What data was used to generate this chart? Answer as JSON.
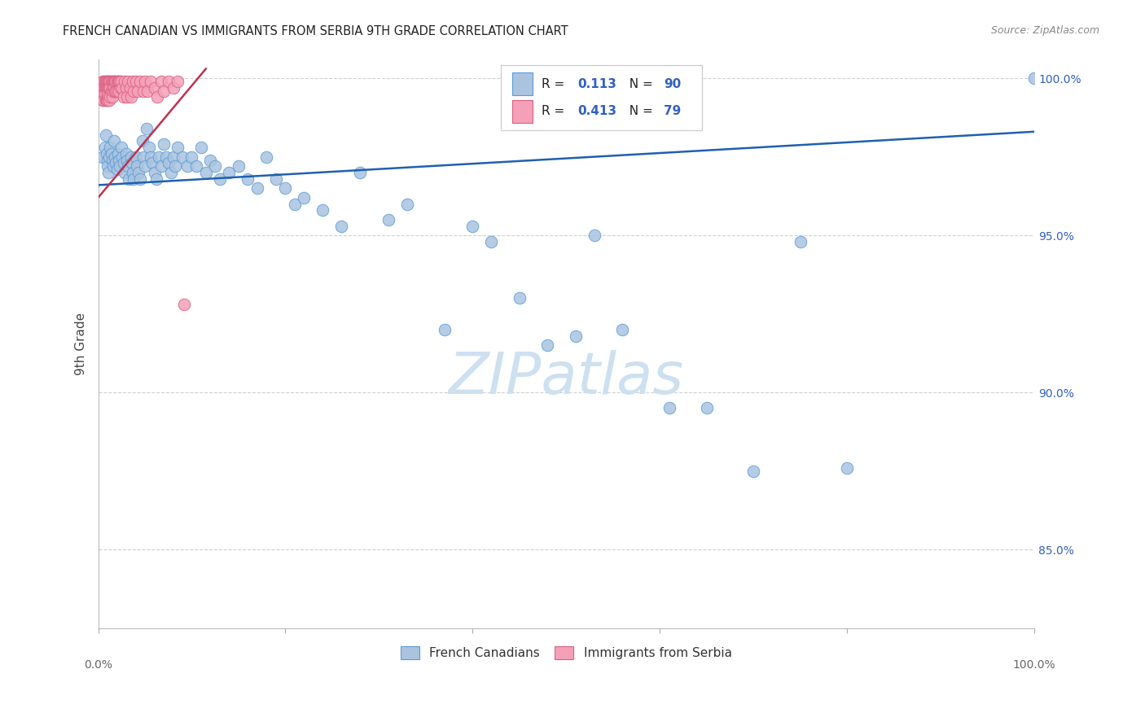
{
  "title": "FRENCH CANADIAN VS IMMIGRANTS FROM SERBIA 9TH GRADE CORRELATION CHART",
  "source": "Source: ZipAtlas.com",
  "ylabel": "9th Grade",
  "legend_blue_label": "French Canadians",
  "legend_pink_label": "Immigrants from Serbia",
  "blue_R_val": "0.113",
  "blue_N_val": "90",
  "pink_R_val": "0.413",
  "pink_N_val": "79",
  "blue_color": "#aac4e0",
  "blue_edge": "#5b9bd5",
  "pink_color": "#f4a0b8",
  "pink_edge": "#d96080",
  "blue_line_color": "#2060b0",
  "pink_line_color": "#c03050",
  "watermark_color": "#cde0f0",
  "right_axis_color": "#3060c0",
  "grid_color": "#d0d0d0",
  "title_color": "#222222",
  "source_color": "#888888",
  "ylim_low": 0.825,
  "ylim_high": 1.006,
  "xlim_low": 0.0,
  "xlim_high": 1.0,
  "blue_line_x0": 0.0,
  "blue_line_x1": 1.0,
  "blue_line_y0": 0.966,
  "blue_line_y1": 0.983,
  "pink_line_x0": 0.0,
  "pink_line_x1": 0.115,
  "pink_line_y0": 0.962,
  "pink_line_y1": 1.003,
  "blue_x": [
    0.005,
    0.007,
    0.008,
    0.009,
    0.01,
    0.01,
    0.011,
    0.012,
    0.013,
    0.014,
    0.015,
    0.016,
    0.017,
    0.018,
    0.019,
    0.02,
    0.021,
    0.022,
    0.023,
    0.025,
    0.026,
    0.027,
    0.028,
    0.03,
    0.031,
    0.032,
    0.033,
    0.035,
    0.036,
    0.037,
    0.038,
    0.04,
    0.041,
    0.043,
    0.045,
    0.047,
    0.048,
    0.05,
    0.052,
    0.054,
    0.056,
    0.058,
    0.06,
    0.062,
    0.065,
    0.067,
    0.07,
    0.073,
    0.075,
    0.078,
    0.08,
    0.082,
    0.085,
    0.09,
    0.095,
    0.1,
    0.105,
    0.11,
    0.115,
    0.12,
    0.125,
    0.13,
    0.14,
    0.15,
    0.16,
    0.17,
    0.18,
    0.19,
    0.2,
    0.21,
    0.22,
    0.24,
    0.26,
    0.28,
    0.31,
    0.33,
    0.37,
    0.4,
    0.42,
    0.45,
    0.48,
    0.51,
    0.53,
    0.56,
    0.61,
    0.65,
    0.7,
    0.75,
    0.8,
    1.0
  ],
  "blue_y": [
    0.975,
    0.978,
    0.982,
    0.976,
    0.974,
    0.972,
    0.97,
    0.975,
    0.978,
    0.976,
    0.974,
    0.972,
    0.98,
    0.975,
    0.973,
    0.971,
    0.976,
    0.974,
    0.972,
    0.978,
    0.975,
    0.973,
    0.97,
    0.976,
    0.974,
    0.972,
    0.968,
    0.975,
    0.973,
    0.97,
    0.968,
    0.975,
    0.972,
    0.97,
    0.968,
    0.98,
    0.975,
    0.972,
    0.984,
    0.978,
    0.975,
    0.973,
    0.97,
    0.968,
    0.975,
    0.972,
    0.979,
    0.975,
    0.973,
    0.97,
    0.975,
    0.972,
    0.978,
    0.975,
    0.972,
    0.975,
    0.972,
    0.978,
    0.97,
    0.974,
    0.972,
    0.968,
    0.97,
    0.972,
    0.968,
    0.965,
    0.975,
    0.968,
    0.965,
    0.96,
    0.962,
    0.958,
    0.953,
    0.97,
    0.955,
    0.96,
    0.92,
    0.953,
    0.948,
    0.93,
    0.915,
    0.918,
    0.95,
    0.92,
    0.895,
    0.895,
    0.875,
    0.948,
    0.876,
    1.0
  ],
  "pink_x": [
    0.003,
    0.004,
    0.004,
    0.005,
    0.005,
    0.005,
    0.005,
    0.006,
    0.006,
    0.006,
    0.006,
    0.007,
    0.007,
    0.007,
    0.008,
    0.008,
    0.008,
    0.009,
    0.009,
    0.009,
    0.01,
    0.01,
    0.01,
    0.01,
    0.011,
    0.011,
    0.011,
    0.012,
    0.012,
    0.012,
    0.013,
    0.013,
    0.013,
    0.014,
    0.014,
    0.015,
    0.015,
    0.015,
    0.016,
    0.016,
    0.017,
    0.017,
    0.018,
    0.018,
    0.019,
    0.019,
    0.02,
    0.02,
    0.021,
    0.022,
    0.022,
    0.023,
    0.024,
    0.025,
    0.026,
    0.027,
    0.028,
    0.03,
    0.031,
    0.032,
    0.034,
    0.035,
    0.037,
    0.038,
    0.04,
    0.042,
    0.045,
    0.048,
    0.05,
    0.053,
    0.056,
    0.06,
    0.063,
    0.067,
    0.07,
    0.075,
    0.08,
    0.085,
    0.092
  ],
  "pink_y": [
    0.997,
    0.998,
    0.995,
    0.999,
    0.997,
    0.995,
    0.993,
    0.999,
    0.997,
    0.995,
    0.993,
    0.999,
    0.997,
    0.995,
    0.999,
    0.997,
    0.993,
    0.999,
    0.997,
    0.993,
    0.999,
    0.997,
    0.995,
    0.993,
    0.999,
    0.997,
    0.994,
    0.999,
    0.997,
    0.993,
    0.999,
    0.997,
    0.994,
    0.999,
    0.996,
    0.999,
    0.997,
    0.994,
    0.999,
    0.996,
    0.999,
    0.997,
    0.999,
    0.996,
    0.999,
    0.996,
    0.999,
    0.996,
    0.999,
    0.999,
    0.996,
    0.999,
    0.997,
    0.999,
    0.997,
    0.994,
    0.999,
    0.997,
    0.994,
    0.999,
    0.997,
    0.994,
    0.999,
    0.996,
    0.999,
    0.996,
    0.999,
    0.996,
    0.999,
    0.996,
    0.999,
    0.997,
    0.994,
    0.999,
    0.996,
    0.999,
    0.997,
    0.999,
    0.928
  ]
}
